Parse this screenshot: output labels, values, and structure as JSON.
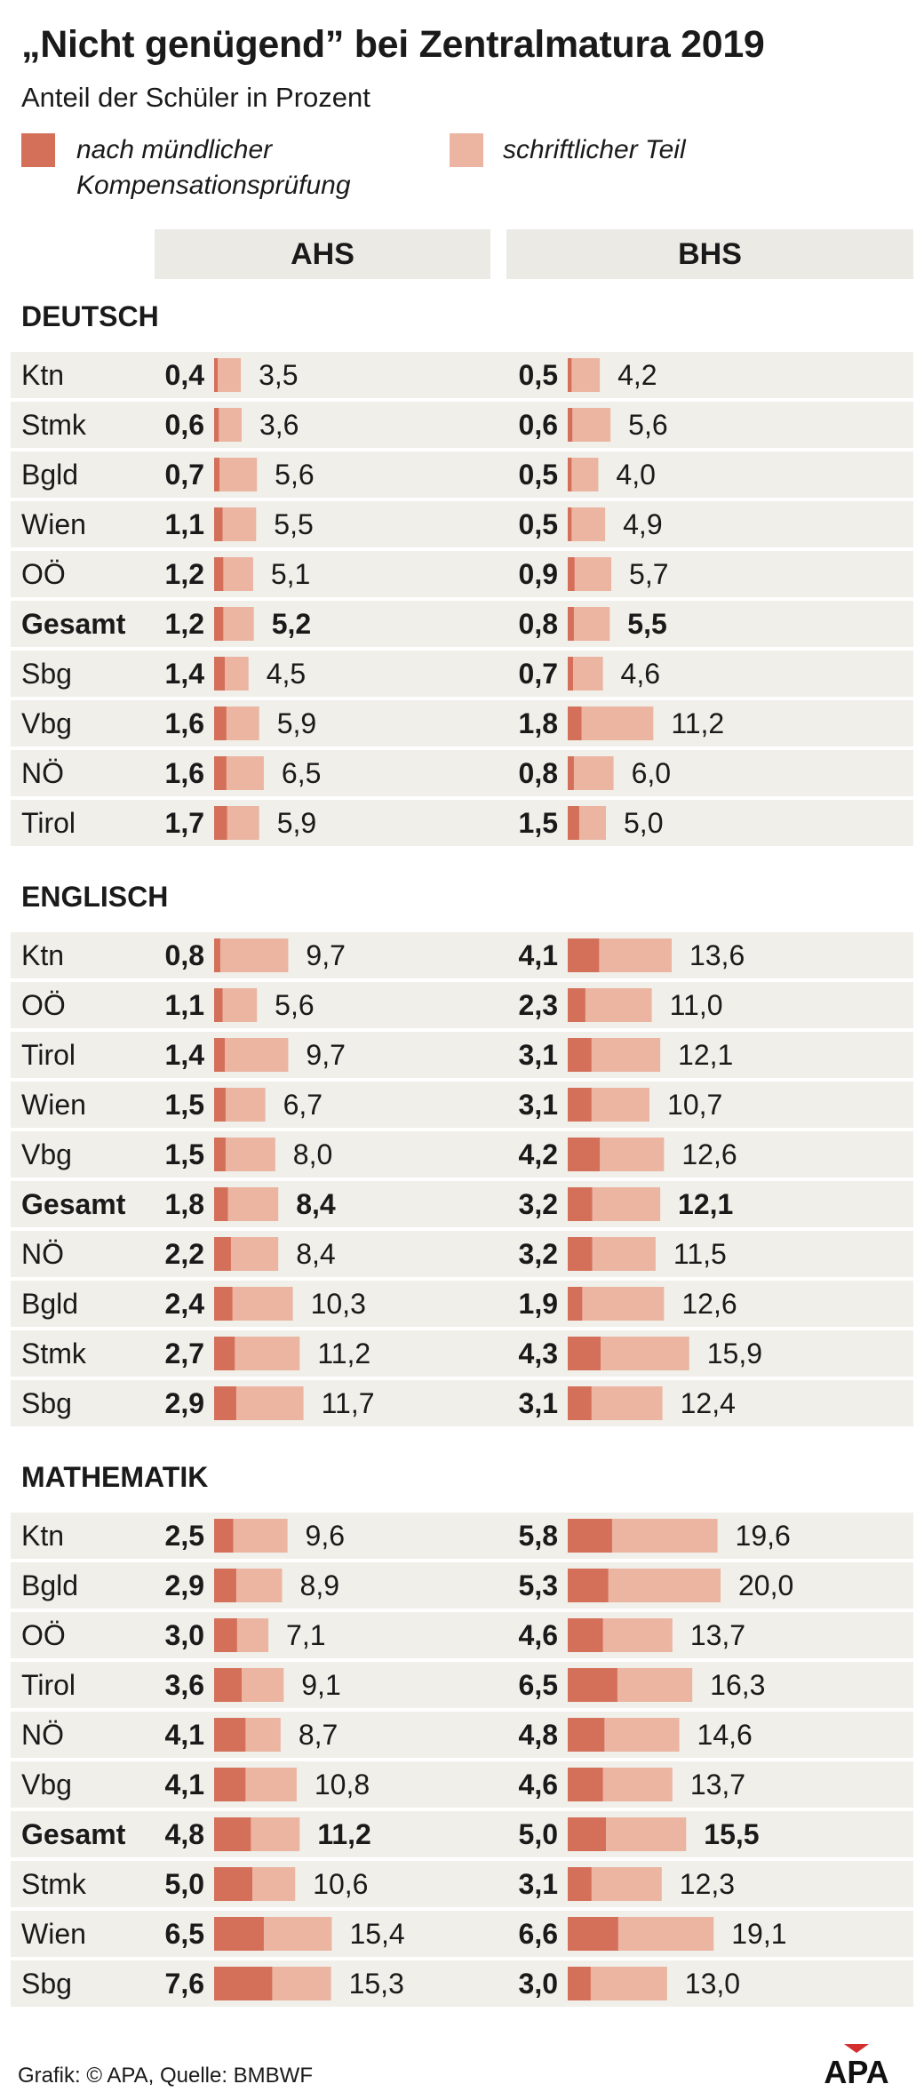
{
  "title": "„Nicht genügend” bei Zentralmatura 2019",
  "subtitle": "Anteil der Schüler in Prozent",
  "legend": [
    {
      "label_lines": [
        "nach mündlicher",
        "Kompensationsprüfung"
      ],
      "color": "#d4705a"
    },
    {
      "label_lines": [
        "schriftlicher Teil"
      ],
      "color": "#ebb5a2"
    }
  ],
  "columns": [
    "AHS",
    "BHS"
  ],
  "footer": "Grafik: © APA, Quelle: BMBWF",
  "logo_text": "APA",
  "colors": {
    "oral": "#d4705a",
    "written": "#ebb5a2",
    "row_bg": "#f0efe9",
    "header_bg": "#ebeae4"
  },
  "chart_data": {
    "type": "bar",
    "stacked": false,
    "overlapping_bars": true,
    "unit": "percent",
    "series": [
      {
        "name": "nach mündlicher Kompensationsprüfung"
      },
      {
        "name": "schriftlicher Teil"
      }
    ],
    "sections": [
      {
        "title": "DEUTSCH",
        "rows": [
          {
            "region": "Ktn",
            "ahs": [
              0.4,
              "3,5"
            ],
            "bhs": [
              0.5,
              "4,2"
            ],
            "ahs_oral": "0,4",
            "bhs_oral": "0,5",
            "ahs_written": 3.5,
            "bhs_written": 4.2
          },
          {
            "region": "Stmk",
            "ahs_oral": "0,6",
            "bhs_oral": "0,6",
            "ahs": [
              0.6,
              "3,6"
            ],
            "bhs": [
              0.6,
              "5,6"
            ],
            "ahs_written": 3.6,
            "bhs_written": 5.6
          },
          {
            "region": "Bgld",
            "ahs_oral": "0,7",
            "bhs_oral": "0,5",
            "ahs": [
              0.7,
              "5,6"
            ],
            "bhs": [
              0.5,
              "4,0"
            ],
            "ahs_written": 5.6,
            "bhs_written": 4.0
          },
          {
            "region": "Wien",
            "ahs_oral": "1,1",
            "bhs_oral": "0,5",
            "ahs": [
              1.1,
              "5,5"
            ],
            "bhs": [
              0.5,
              "4,9"
            ],
            "ahs_written": 5.5,
            "bhs_written": 4.9
          },
          {
            "region": "OÖ",
            "ahs_oral": "1,2",
            "bhs_oral": "0,9",
            "ahs": [
              1.2,
              "5,1"
            ],
            "bhs": [
              0.9,
              "5,7"
            ],
            "ahs_written": 5.1,
            "bhs_written": 5.7
          },
          {
            "region": "Gesamt",
            "total": true,
            "ahs_oral": "1,2",
            "bhs_oral": "0,8",
            "ahs": [
              1.2,
              "5,2"
            ],
            "bhs": [
              0.8,
              "5,5"
            ],
            "ahs_written": 5.2,
            "bhs_written": 5.5
          },
          {
            "region": "Sbg",
            "ahs_oral": "1,4",
            "bhs_oral": "0,7",
            "ahs": [
              1.4,
              "4,5"
            ],
            "bhs": [
              0.7,
              "4,6"
            ],
            "ahs_written": 4.5,
            "bhs_written": 4.6
          },
          {
            "region": "Vbg",
            "ahs_oral": "1,6",
            "bhs_oral": "1,8",
            "ahs": [
              1.6,
              "5,9"
            ],
            "bhs": [
              1.8,
              "11,2"
            ],
            "ahs_written": 5.9,
            "bhs_written": 11.2
          },
          {
            "region": "NÖ",
            "ahs_oral": "1,6",
            "bhs_oral": "0,8",
            "ahs": [
              1.6,
              "6,5"
            ],
            "bhs": [
              0.8,
              "6,0"
            ],
            "ahs_written": 6.5,
            "bhs_written": 6.0
          },
          {
            "region": "Tirol",
            "ahs_oral": "1,7",
            "bhs_oral": "1,5",
            "ahs": [
              1.7,
              "5,9"
            ],
            "bhs": [
              1.5,
              "5,0"
            ],
            "ahs_written": 5.9,
            "bhs_written": 5.0
          }
        ]
      },
      {
        "title": "ENGLISCH",
        "rows": [
          {
            "region": "Ktn",
            "ahs_oral": "0,8",
            "bhs_oral": "4,1",
            "ahs": [
              0.8,
              "9,7"
            ],
            "bhs": [
              4.1,
              "13,6"
            ],
            "ahs_written": 9.7,
            "bhs_written": 13.6
          },
          {
            "region": "OÖ",
            "ahs_oral": "1,1",
            "bhs_oral": "2,3",
            "ahs": [
              1.1,
              "5,6"
            ],
            "bhs": [
              2.3,
              "11,0"
            ],
            "ahs_written": 5.6,
            "bhs_written": 11.0
          },
          {
            "region": "Tirol",
            "ahs_oral": "1,4",
            "bhs_oral": "3,1",
            "ahs": [
              1.4,
              "9,7"
            ],
            "bhs": [
              3.1,
              "12,1"
            ],
            "ahs_written": 9.7,
            "bhs_written": 12.1
          },
          {
            "region": "Wien",
            "ahs_oral": "1,5",
            "bhs_oral": "3,1",
            "ahs": [
              1.5,
              "6,7"
            ],
            "bhs": [
              3.1,
              "10,7"
            ],
            "ahs_written": 6.7,
            "bhs_written": 10.7
          },
          {
            "region": "Vbg",
            "ahs_oral": "1,5",
            "bhs_oral": "4,2",
            "ahs": [
              1.5,
              "8,0"
            ],
            "bhs": [
              4.2,
              "12,6"
            ],
            "ahs_written": 8.0,
            "bhs_written": 12.6
          },
          {
            "region": "Gesamt",
            "total": true,
            "ahs_oral": "1,8",
            "bhs_oral": "3,2",
            "ahs": [
              1.8,
              "8,4"
            ],
            "bhs": [
              3.2,
              "12,1"
            ],
            "ahs_written": 8.4,
            "bhs_written": 12.1
          },
          {
            "region": "NÖ",
            "ahs_oral": "2,2",
            "bhs_oral": "3,2",
            "ahs": [
              2.2,
              "8,4"
            ],
            "bhs": [
              3.2,
              "11,5"
            ],
            "ahs_written": 8.4,
            "bhs_written": 11.5
          },
          {
            "region": "Bgld",
            "ahs_oral": "2,4",
            "bhs_oral": "1,9",
            "ahs": [
              2.4,
              "10,3"
            ],
            "bhs": [
              1.9,
              "12,6"
            ],
            "ahs_written": 10.3,
            "bhs_written": 12.6
          },
          {
            "region": "Stmk",
            "ahs_oral": "2,7",
            "bhs_oral": "4,3",
            "ahs": [
              2.7,
              "11,2"
            ],
            "bhs": [
              4.3,
              "15,9"
            ],
            "ahs_written": 11.2,
            "bhs_written": 15.9
          },
          {
            "region": "Sbg",
            "ahs_oral": "2,9",
            "bhs_oral": "3,1",
            "ahs": [
              2.9,
              "11,7"
            ],
            "bhs": [
              3.1,
              "12,4"
            ],
            "ahs_written": 11.7,
            "bhs_written": 12.4
          }
        ]
      },
      {
        "title": "MATHEMATIK",
        "rows": [
          {
            "region": "Ktn",
            "ahs_oral": "2,5",
            "bhs_oral": "5,8",
            "ahs": [
              2.5,
              "9,6"
            ],
            "bhs": [
              5.8,
              "19,6"
            ],
            "ahs_written": 9.6,
            "bhs_written": 19.6
          },
          {
            "region": "Bgld",
            "ahs_oral": "2,9",
            "bhs_oral": "5,3",
            "ahs": [
              2.9,
              "8,9"
            ],
            "bhs": [
              5.3,
              "20,0"
            ],
            "ahs_written": 8.9,
            "bhs_written": 20.0
          },
          {
            "region": "OÖ",
            "ahs_oral": "3,0",
            "bhs_oral": "4,6",
            "ahs": [
              3.0,
              "7,1"
            ],
            "bhs": [
              4.6,
              "13,7"
            ],
            "ahs_written": 7.1,
            "bhs_written": 13.7
          },
          {
            "region": "Tirol",
            "ahs_oral": "3,6",
            "bhs_oral": "6,5",
            "ahs": [
              3.6,
              "9,1"
            ],
            "bhs": [
              6.5,
              "16,3"
            ],
            "ahs_written": 9.1,
            "bhs_written": 16.3
          },
          {
            "region": "NÖ",
            "ahs_oral": "4,1",
            "bhs_oral": "4,8",
            "ahs": [
              4.1,
              "8,7"
            ],
            "bhs": [
              4.8,
              "14,6"
            ],
            "ahs_written": 8.7,
            "bhs_written": 14.6
          },
          {
            "region": "Vbg",
            "ahs_oral": "4,1",
            "bhs_oral": "4,6",
            "ahs": [
              4.1,
              "10,8"
            ],
            "bhs": [
              4.6,
              "13,7"
            ],
            "ahs_written": 10.8,
            "bhs_written": 13.7
          },
          {
            "region": "Gesamt",
            "total": true,
            "ahs_oral": "4,8",
            "bhs_oral": "5,0",
            "ahs": [
              4.8,
              "11,2"
            ],
            "bhs": [
              5.0,
              "15,5"
            ],
            "ahs_written": 11.2,
            "bhs_written": 15.5
          },
          {
            "region": "Stmk",
            "ahs_oral": "5,0",
            "bhs_oral": "3,1",
            "ahs": [
              5.0,
              "10,6"
            ],
            "bhs": [
              3.1,
              "12,3"
            ],
            "ahs_written": 10.6,
            "bhs_written": 12.3
          },
          {
            "region": "Wien",
            "ahs_oral": "6,5",
            "bhs_oral": "6,6",
            "ahs": [
              6.5,
              "15,4"
            ],
            "bhs": [
              6.6,
              "19,1"
            ],
            "ahs_written": 15.4,
            "bhs_written": 19.1
          },
          {
            "region": "Sbg",
            "ahs_oral": "7,6",
            "bhs_oral": "3,0",
            "ahs": [
              7.6,
              "15,3"
            ],
            "bhs": [
              3.0,
              "13,0"
            ],
            "ahs_written": 15.3,
            "bhs_written": 13.0
          }
        ]
      }
    ]
  }
}
